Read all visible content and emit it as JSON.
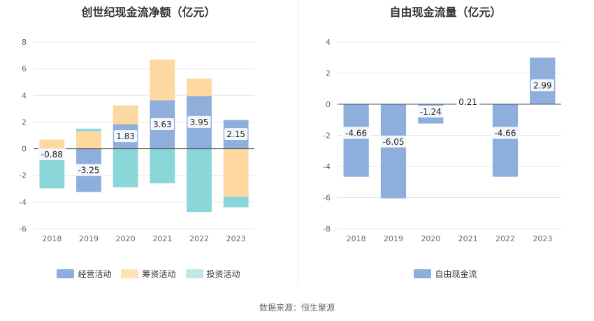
{
  "source": "数据来源：恒生聚源",
  "colors": {
    "operating": "#8eaedb",
    "financing": "#fdd89f",
    "investing": "#8ad6d8",
    "free_cash": "#8eaedb",
    "investing_legend": "#bfe8ea",
    "financing_legend": "#fde3b8"
  },
  "chart_data": [
    {
      "type": "bar",
      "title": "创世纪现金流净额（亿元）",
      "categories": [
        "2018",
        "2019",
        "2020",
        "2021",
        "2022",
        "2023"
      ],
      "ylim": [
        -6,
        8
      ],
      "yticks": [
        -6,
        -4,
        -2,
        0,
        2,
        4,
        6,
        8
      ],
      "stacked": true,
      "grid": true,
      "legend_position": "bottom",
      "series": [
        {
          "name": "经营活动",
          "values": [
            -0.88,
            -3.25,
            1.83,
            3.63,
            3.95,
            2.15
          ],
          "labels": [
            "-0.88",
            "-3.25",
            "1.83",
            "3.63",
            "3.95",
            "2.15"
          ]
        },
        {
          "name": "筹资活动",
          "values": [
            0.68,
            1.3,
            1.42,
            3.04,
            1.3,
            -3.6
          ]
        },
        {
          "name": "投资活动",
          "values": [
            -2.1,
            0.2,
            -2.9,
            -2.6,
            -4.75,
            -0.8
          ]
        }
      ]
    },
    {
      "type": "bar",
      "title": "自由现金流量（亿元）",
      "categories": [
        "2018",
        "2019",
        "2020",
        "2021",
        "2022",
        "2023"
      ],
      "ylim": [
        -8,
        4
      ],
      "yticks": [
        -8,
        -6,
        -4,
        -2,
        0,
        2,
        4
      ],
      "grid": true,
      "legend_position": "bottom",
      "series": [
        {
          "name": "自由现金流",
          "values": [
            -4.66,
            -6.05,
            -1.24,
            0.21,
            -4.66,
            2.99
          ],
          "labels": [
            "-4.66",
            "-6.05",
            "-1.24",
            "0.21",
            "-4.66",
            "2.99"
          ]
        }
      ]
    }
  ]
}
